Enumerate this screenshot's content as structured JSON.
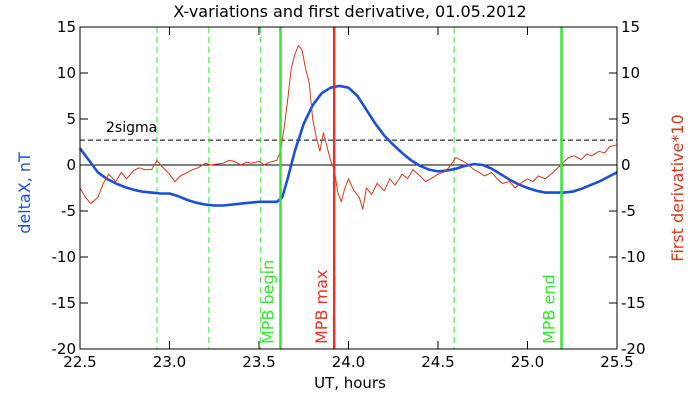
{
  "chart_data": {
    "type": "line",
    "title": "X-variations and first derivative, 01.05.2012",
    "xlabel": "UT, hours",
    "ylabel_left": "deltaX, nT",
    "ylabel_right": "First derivative*10",
    "xlim": [
      22.5,
      25.5
    ],
    "ylim": [
      -20,
      15
    ],
    "ylim_right": [
      -20,
      15
    ],
    "x_ticks": [
      "22.5",
      "23.0",
      "23.5",
      "24.0",
      "24.5",
      "25.0",
      "25.5"
    ],
    "y_ticks": [
      "15",
      "10",
      "5",
      "0",
      "-5",
      "-10",
      "-15",
      "-20"
    ],
    "grid": false,
    "colors": {
      "deltaX": "#1a4fd6",
      "derivative": "#d43a1a",
      "mpb": "#33e633",
      "mpb_max": "#e63326"
    },
    "sigma": {
      "label": "2sigma",
      "value": 2.7
    },
    "zero_line": 0,
    "markers": [
      {
        "x": 23.62,
        "label": "MPB begin"
      },
      {
        "x": 23.92,
        "label": "MPB max"
      },
      {
        "x": 25.19,
        "label": "MPB end"
      }
    ],
    "dashed_lines_x": [
      22.93,
      23.22,
      23.51,
      24.59
    ],
    "series": [
      {
        "name": "deltaX, nT",
        "x": [
          22.5,
          22.55,
          22.6,
          22.65,
          22.7,
          22.75,
          22.8,
          22.85,
          22.9,
          22.95,
          23.0,
          23.05,
          23.1,
          23.15,
          23.2,
          23.25,
          23.3,
          23.35,
          23.4,
          23.45,
          23.5,
          23.55,
          23.6,
          23.63,
          23.66,
          23.7,
          23.75,
          23.8,
          23.85,
          23.9,
          23.95,
          24.0,
          24.05,
          24.1,
          24.15,
          24.2,
          24.25,
          24.3,
          24.35,
          24.4,
          24.45,
          24.5,
          24.55,
          24.6,
          24.65,
          24.7,
          24.75,
          24.8,
          24.85,
          24.9,
          24.95,
          25.0,
          25.05,
          25.1,
          25.15,
          25.2,
          25.25,
          25.3,
          25.35,
          25.4,
          25.45,
          25.5
        ],
        "y": [
          1.8,
          0.5,
          -0.8,
          -1.5,
          -2.0,
          -2.4,
          -2.7,
          -2.9,
          -3.0,
          -3.1,
          -3.1,
          -3.4,
          -3.8,
          -4.1,
          -4.3,
          -4.4,
          -4.4,
          -4.3,
          -4.2,
          -4.1,
          -4.0,
          -4.0,
          -4.0,
          -3.5,
          -1.5,
          1.5,
          4.5,
          6.5,
          7.8,
          8.4,
          8.6,
          8.4,
          7.5,
          6.0,
          4.5,
          3.2,
          2.2,
          1.3,
          0.5,
          -0.1,
          -0.5,
          -0.7,
          -0.6,
          -0.4,
          -0.1,
          0.1,
          0.0,
          -0.4,
          -1.0,
          -1.6,
          -2.1,
          -2.5,
          -2.8,
          -3.0,
          -3.0,
          -3.0,
          -2.9,
          -2.6,
          -2.2,
          -1.8,
          -1.3,
          -0.8
        ]
      },
      {
        "name": "First derivative*10",
        "x": [
          22.5,
          22.53,
          22.56,
          22.6,
          22.63,
          22.66,
          22.7,
          22.73,
          22.76,
          22.8,
          22.83,
          22.86,
          22.9,
          22.93,
          22.96,
          23.0,
          23.03,
          23.06,
          23.1,
          23.13,
          23.16,
          23.2,
          23.23,
          23.26,
          23.3,
          23.33,
          23.36,
          23.4,
          23.43,
          23.46,
          23.5,
          23.53,
          23.56,
          23.6,
          23.62,
          23.64,
          23.66,
          23.68,
          23.7,
          23.72,
          23.74,
          23.76,
          23.78,
          23.8,
          23.82,
          23.84,
          23.86,
          23.88,
          23.9,
          23.92,
          23.94,
          23.96,
          23.98,
          24.0,
          24.03,
          24.06,
          24.08,
          24.1,
          24.13,
          24.16,
          24.2,
          24.23,
          24.26,
          24.3,
          24.33,
          24.36,
          24.4,
          24.43,
          24.46,
          24.5,
          24.53,
          24.56,
          24.6,
          24.63,
          24.66,
          24.7,
          24.73,
          24.76,
          24.8,
          24.83,
          24.86,
          24.9,
          24.93,
          24.96,
          25.0,
          25.03,
          25.06,
          25.1,
          25.13,
          25.16,
          25.2,
          25.23,
          25.26,
          25.3,
          25.33,
          25.36,
          25.4,
          25.43,
          25.46,
          25.5
        ],
        "y": [
          -2.5,
          -3.5,
          -4.2,
          -3.5,
          -2.0,
          -1.0,
          -1.8,
          -0.8,
          -1.5,
          -0.6,
          -0.3,
          -0.5,
          -0.5,
          0.5,
          -0.2,
          -1.0,
          -1.8,
          -1.2,
          -0.8,
          -0.5,
          -0.3,
          0.2,
          0.0,
          0.1,
          0.2,
          0.5,
          0.4,
          0.0,
          0.3,
          0.2,
          0.4,
          0.0,
          0.3,
          0.5,
          1.5,
          4.0,
          7.0,
          10.5,
          12.0,
          13.0,
          12.5,
          10.5,
          9.0,
          5.0,
          3.0,
          1.5,
          3.5,
          2.0,
          0.5,
          -0.5,
          -3.0,
          -4.0,
          -2.5,
          -1.5,
          -2.8,
          -3.5,
          -4.8,
          -2.5,
          -3.2,
          -2.0,
          -2.8,
          -1.5,
          -2.2,
          -1.0,
          -1.5,
          -0.5,
          -1.2,
          -1.8,
          -1.5,
          -1.0,
          -0.8,
          -0.3,
          0.8,
          0.5,
          0.2,
          -0.5,
          -0.8,
          -1.2,
          -0.8,
          -1.5,
          -2.0,
          -1.8,
          -2.5,
          -2.0,
          -1.5,
          -1.8,
          -1.2,
          -1.5,
          -1.0,
          -0.5,
          0.3,
          0.8,
          1.0,
          0.6,
          1.2,
          1.0,
          1.5,
          1.3,
          2.0,
          2.2
        ]
      }
    ]
  }
}
